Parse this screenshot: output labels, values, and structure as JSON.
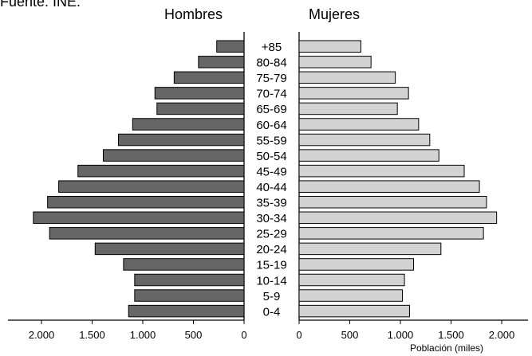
{
  "chart_data": {
    "type": "bar",
    "source": "Fuente: INE.",
    "left_title": "Hombres",
    "right_title": "Mujeres",
    "unit_label": "Población (miles)",
    "categories": [
      "+85",
      "80-84",
      "75-79",
      "70-74",
      "65-69",
      "60-64",
      "55-59",
      "50-54",
      "45-49",
      "40-44",
      "35-39",
      "30-34",
      "25-29",
      "20-24",
      "15-19",
      "10-14",
      "5-9",
      "0-4"
    ],
    "series": [
      {
        "name": "Hombres",
        "color": "#666666",
        "values": [
          270,
          450,
          690,
          880,
          860,
          1100,
          1240,
          1390,
          1640,
          1830,
          1940,
          2080,
          1920,
          1470,
          1190,
          1080,
          1080,
          1140
        ]
      },
      {
        "name": "Mujeres",
        "color": "#d3d3d3",
        "values": [
          610,
          710,
          950,
          1080,
          970,
          1180,
          1290,
          1380,
          1630,
          1780,
          1850,
          1950,
          1820,
          1400,
          1130,
          1040,
          1020,
          1090
        ]
      }
    ],
    "xlim": [
      0,
      2100
    ],
    "x_ticks": [
      {
        "value": 0,
        "label": "0"
      },
      {
        "value": 500,
        "label": "500"
      },
      {
        "value": 1000,
        "label": "1.000"
      },
      {
        "value": 1500,
        "label": "1.500"
      },
      {
        "value": 2000,
        "label": "2.000"
      }
    ],
    "legend": "none",
    "grid": false
  }
}
